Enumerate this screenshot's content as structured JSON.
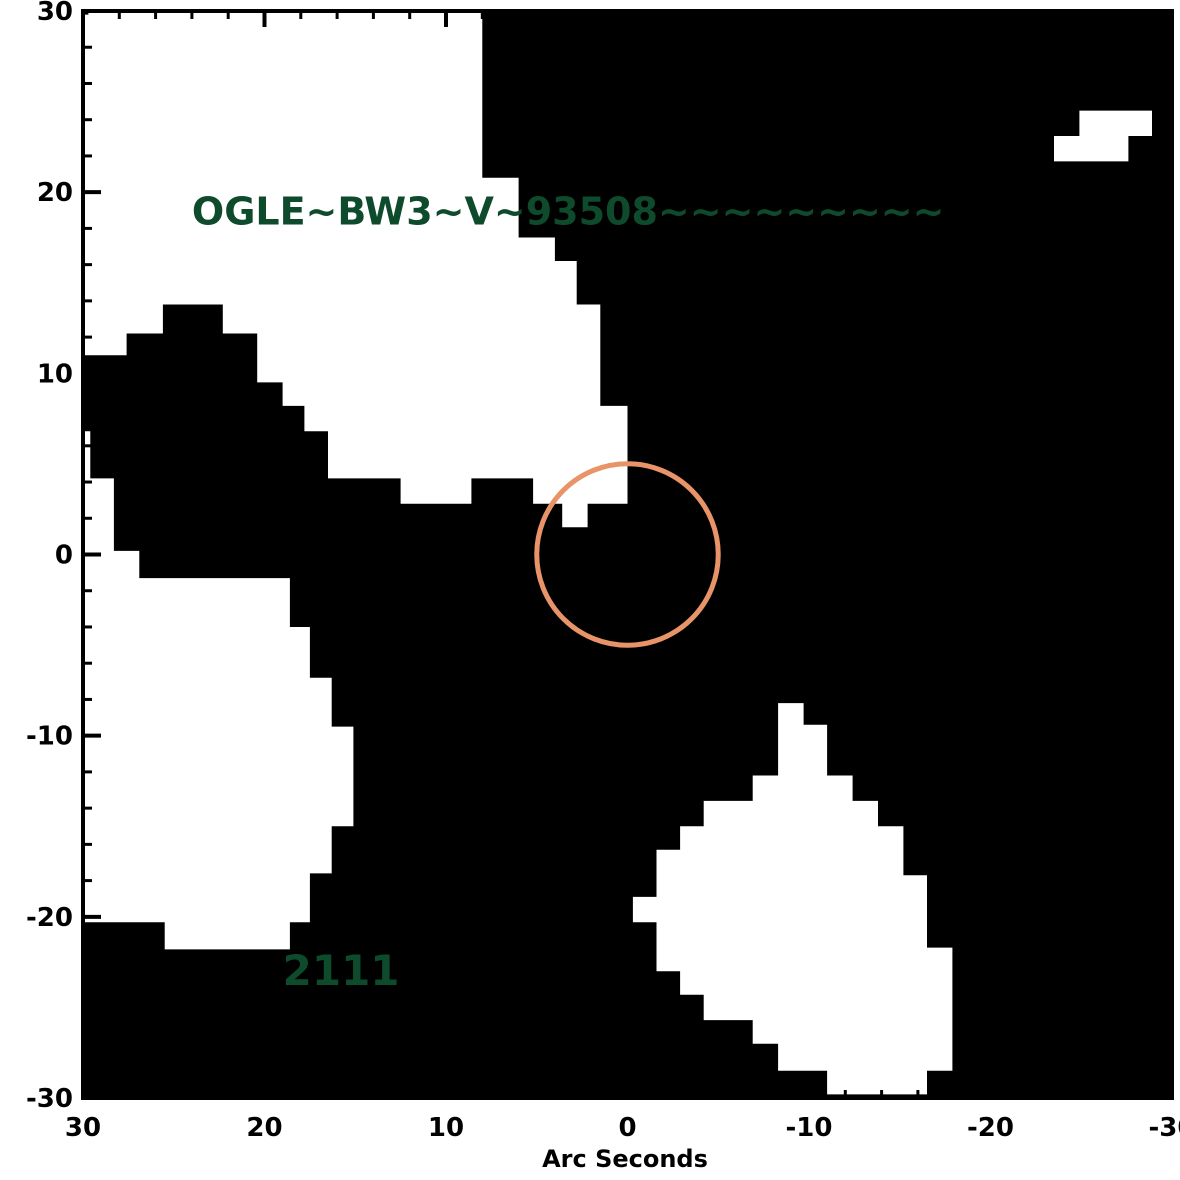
{
  "chart_data": {
    "type": "heatmap",
    "title": "",
    "xlabel": "Arc Seconds",
    "ylabel": "",
    "xlim": [
      30,
      -30
    ],
    "ylim": [
      -30,
      30
    ],
    "x_ticks": [
      30,
      20,
      10,
      0,
      -10,
      -20,
      -30
    ],
    "y_ticks": [
      30,
      20,
      10,
      0,
      -10,
      -20,
      -30
    ],
    "x_tick_labels": [
      "30",
      "20",
      "10",
      "0",
      "-10",
      "-20",
      "-30"
    ],
    "y_tick_labels": [
      "30",
      "20",
      "10",
      "0",
      "-10",
      "-20",
      "-30"
    ],
    "annotations": [
      {
        "text": "OGLE~BW3~V~93508~~~~~~~~~",
        "x": 24.0,
        "y": 19.0
      },
      {
        "text": "2111",
        "x": 19.0,
        "y": -23.0
      }
    ],
    "aperture_circle": {
      "x": 0,
      "y": 0,
      "radius": 5.0
    },
    "mask_regions": [
      {
        "name": "upper-left region",
        "polygon": [
          [
            30,
            29.8
          ],
          [
            29.7,
            29.8
          ],
          [
            29.7,
            30.5
          ],
          [
            8,
            30.5
          ],
          [
            8,
            20.8
          ],
          [
            6,
            20.8
          ],
          [
            6,
            17.5
          ],
          [
            4,
            17.5
          ],
          [
            4,
            16.2
          ],
          [
            2.8,
            16.2
          ],
          [
            2.8,
            13.8
          ],
          [
            1.5,
            13.8
          ],
          [
            1.5,
            8.2
          ],
          [
            0,
            8.2
          ],
          [
            0,
            2.8
          ],
          [
            3.6,
            2.8
          ],
          [
            3.6,
            1.5
          ],
          [
            2.2,
            1.5
          ],
          [
            2.2,
            2.8
          ],
          [
            5.2,
            2.8
          ],
          [
            5.2,
            4.2
          ],
          [
            8.6,
            4.2
          ],
          [
            8.6,
            2.8
          ],
          [
            12.5,
            2.8
          ],
          [
            12.5,
            4.2
          ],
          [
            16.5,
            4.2
          ],
          [
            16.5,
            6.8
          ],
          [
            17.8,
            6.8
          ],
          [
            17.8,
            8.2
          ],
          [
            19.0,
            8.2
          ],
          [
            19.0,
            9.5
          ],
          [
            20.4,
            9.5
          ],
          [
            20.4,
            12.2
          ],
          [
            22.3,
            12.2
          ],
          [
            22.3,
            13.8
          ],
          [
            25.6,
            13.8
          ],
          [
            25.6,
            12.2
          ],
          [
            27.6,
            12.2
          ],
          [
            27.6,
            11.0
          ],
          [
            30,
            11.0
          ]
        ]
      },
      {
        "name": "left region",
        "polygon": [
          [
            30,
            6.8
          ],
          [
            29.6,
            6.8
          ],
          [
            29.6,
            4.2
          ],
          [
            28.3,
            4.2
          ],
          [
            28.3,
            0.2
          ],
          [
            26.9,
            0.2
          ],
          [
            26.9,
            -1.3
          ],
          [
            18.6,
            -1.3
          ],
          [
            18.6,
            -4.0
          ],
          [
            17.5,
            -4.0
          ],
          [
            17.5,
            -6.8
          ],
          [
            16.3,
            -6.8
          ],
          [
            16.3,
            -9.5
          ],
          [
            15.1,
            -9.5
          ],
          [
            15.1,
            -15.0
          ],
          [
            16.3,
            -15.0
          ],
          [
            16.3,
            -17.6
          ],
          [
            17.5,
            -17.6
          ],
          [
            17.5,
            -20.3
          ],
          [
            18.6,
            -20.3
          ],
          [
            18.6,
            -21.8
          ],
          [
            25.5,
            -21.8
          ],
          [
            25.5,
            -20.3
          ],
          [
            30,
            -20.3
          ]
        ]
      },
      {
        "name": "lower-right region",
        "polygon": [
          [
            -9.7,
            -8.2
          ],
          [
            -9.7,
            -9.4
          ],
          [
            -11.0,
            -9.4
          ],
          [
            -11.0,
            -12.2
          ],
          [
            -12.4,
            -12.2
          ],
          [
            -12.4,
            -13.6
          ],
          [
            -13.8,
            -13.6
          ],
          [
            -13.8,
            -15.0
          ],
          [
            -15.2,
            -15.0
          ],
          [
            -15.2,
            -17.7
          ],
          [
            -16.5,
            -17.7
          ],
          [
            -16.5,
            -21.7
          ],
          [
            -17.9,
            -21.7
          ],
          [
            -17.9,
            -28.5
          ],
          [
            -16.5,
            -28.5
          ],
          [
            -16.5,
            -29.8
          ],
          [
            -11.0,
            -29.8
          ],
          [
            -11.0,
            -28.5
          ],
          [
            -8.3,
            -28.5
          ],
          [
            -8.3,
            -27.0
          ],
          [
            -6.9,
            -27.0
          ],
          [
            -6.9,
            -25.7
          ],
          [
            -4.2,
            -25.7
          ],
          [
            -4.2,
            -24.3
          ],
          [
            -2.9,
            -24.3
          ],
          [
            -2.9,
            -23.0
          ],
          [
            -1.6,
            -23.0
          ],
          [
            -1.6,
            -20.3
          ],
          [
            -0.3,
            -20.3
          ],
          [
            -0.3,
            -18.9
          ],
          [
            -1.6,
            -18.9
          ],
          [
            -1.6,
            -16.3
          ],
          [
            -2.9,
            -16.3
          ],
          [
            -2.9,
            -15.0
          ],
          [
            -4.2,
            -15.0
          ],
          [
            -4.2,
            -13.6
          ],
          [
            -6.9,
            -13.6
          ],
          [
            -6.9,
            -12.2
          ],
          [
            -8.3,
            -12.2
          ],
          [
            -8.3,
            -8.2
          ]
        ]
      },
      {
        "name": "upper-right blob",
        "polygon": [
          [
            -23.5,
            21.7
          ],
          [
            -23.5,
            23.1
          ],
          [
            -24.9,
            23.1
          ],
          [
            -24.9,
            24.5
          ],
          [
            -28.9,
            24.5
          ],
          [
            -28.9,
            23.1
          ],
          [
            -27.6,
            23.1
          ],
          [
            -27.6,
            21.7
          ]
        ]
      }
    ]
  },
  "colors": {
    "background": "#000000",
    "mask_fill": "#ffffff",
    "circle": "#e89468",
    "annotation": "#0e4a2c",
    "axes": "#000000"
  }
}
